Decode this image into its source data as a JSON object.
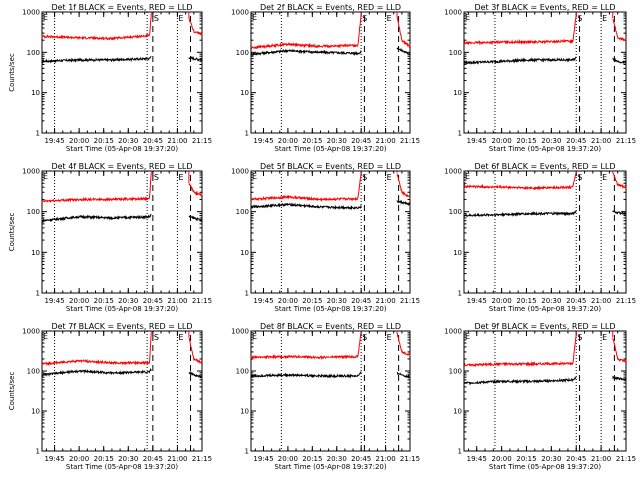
{
  "colors": {
    "events": "#000000",
    "lld": "#ff0000",
    "axis": "#000000",
    "background": "#ffffff"
  },
  "chart_data": [
    {
      "type": "line",
      "title": "Det 1f BLACK = Events, RED = LLD",
      "xlabel": "Start Time (05-Apr-08 19:37:20)",
      "ylabel": "Counts/sec",
      "yscale": "log",
      "ylim": [
        1,
        1000
      ],
      "xlim": [
        "19:37:20",
        "21:15:00"
      ],
      "xticks": [
        "19:45",
        "20:00",
        "20:15",
        "20:30",
        "20:45",
        "21:00",
        "21:15"
      ],
      "yticks": [
        "1",
        "10",
        "100",
        "1000"
      ],
      "dotted_lines": [
        "19:45",
        "20:41:30",
        "21:00"
      ],
      "dashed_lines": [
        "20:45",
        "21:08"
      ],
      "markers": {
        "S": "20:45",
        "E": "21:00"
      },
      "series": [
        {
          "name": "Events",
          "color": "black",
          "values": [
            [
              "19:37:20",
              60
            ],
            [
              "20:00",
              65
            ],
            [
              "20:20",
              65
            ],
            [
              "20:43",
              70
            ],
            [
              "20:44",
              80
            ]
          ],
          "after_gap": [
            [
              "21:07",
              75
            ],
            [
              "21:10",
              70
            ],
            [
              "21:15",
              65
            ]
          ]
        },
        {
          "name": "LLD",
          "color": "red",
          "values": [
            [
              "19:37:20",
              250
            ],
            [
              "20:00",
              230
            ],
            [
              "20:20",
              220
            ],
            [
              "20:43",
              260
            ],
            [
              "20:44",
              800
            ]
          ],
          "after_gap": [
            [
              "21:07",
              700
            ],
            [
              "21:10",
              330
            ],
            [
              "21:15",
              280
            ]
          ]
        }
      ]
    },
    {
      "type": "line",
      "title": "Det 2f BLACK = Events, RED = LLD",
      "xlabel": "Start Time (05-Apr-08 19:37:20)",
      "ylabel": "",
      "yscale": "log",
      "ylim": [
        1,
        1000
      ],
      "xlim": [
        "19:37:20",
        "21:15:00"
      ],
      "xticks": [
        "19:45",
        "20:00",
        "20:15",
        "20:30",
        "20:45",
        "21:00",
        "21:15"
      ],
      "yticks": [
        "1",
        "10",
        "100",
        "1000"
      ],
      "dotted_lines": [
        "19:56",
        "20:45",
        "21:00"
      ],
      "dashed_lines": [
        "20:47",
        "21:08"
      ],
      "markers": {
        "S": "20:45",
        "E": "21:00"
      },
      "series": [
        {
          "name": "Events",
          "color": "black",
          "values": [
            [
              "19:37:20",
              90
            ],
            [
              "20:00",
              110
            ],
            [
              "20:20",
              100
            ],
            [
              "20:43",
              95
            ],
            [
              "20:45",
              100
            ]
          ],
          "after_gap": [
            [
              "21:07",
              130
            ],
            [
              "21:10",
              110
            ],
            [
              "21:15",
              90
            ]
          ]
        },
        {
          "name": "LLD",
          "color": "red",
          "values": [
            [
              "19:37:20",
              130
            ],
            [
              "20:00",
              160
            ],
            [
              "20:20",
              140
            ],
            [
              "20:43",
              150
            ],
            [
              "20:45",
              900
            ]
          ],
          "after_gap": [
            [
              "21:07",
              800
            ],
            [
              "21:10",
              200
            ],
            [
              "21:15",
              140
            ]
          ]
        }
      ]
    },
    {
      "type": "line",
      "title": "Det 3f BLACK = Events, RED = LLD",
      "xlabel": "Start Time (05-Apr-08 19:37:20)",
      "ylabel": "",
      "yscale": "log",
      "ylim": [
        1,
        1000
      ],
      "xlim": [
        "19:37:20",
        "21:15:00"
      ],
      "xticks": [
        "19:45",
        "20:00",
        "20:15",
        "20:30",
        "20:45",
        "21:00",
        "21:15"
      ],
      "yticks": [
        "1",
        "10",
        "100",
        "1000"
      ],
      "dotted_lines": [
        "19:56",
        "20:45",
        "21:00"
      ],
      "dashed_lines": [
        "20:47",
        "21:08"
      ],
      "markers": {
        "S": "20:45",
        "E": "21:00"
      },
      "series": [
        {
          "name": "Events",
          "color": "black",
          "values": [
            [
              "19:37:20",
              55
            ],
            [
              "20:00",
              60
            ],
            [
              "20:20",
              65
            ],
            [
              "20:43",
              65
            ],
            [
              "20:45",
              75
            ]
          ],
          "after_gap": [
            [
              "21:07",
              70
            ],
            [
              "21:10",
              60
            ],
            [
              "21:15",
              55
            ]
          ]
        },
        {
          "name": "LLD",
          "color": "red",
          "values": [
            [
              "19:37:20",
              170
            ],
            [
              "20:00",
              180
            ],
            [
              "20:20",
              180
            ],
            [
              "20:43",
              190
            ],
            [
              "20:45",
              900
            ]
          ],
          "after_gap": [
            [
              "21:07",
              700
            ],
            [
              "21:10",
              230
            ],
            [
              "21:15",
              200
            ]
          ]
        }
      ]
    },
    {
      "type": "line",
      "title": "Det 4f BLACK = Events, RED = LLD",
      "xlabel": "Start Time (05-Apr-08 19:37:20)",
      "ylabel": "Counts/sec",
      "yscale": "log",
      "ylim": [
        1,
        1000
      ],
      "xlim": [
        "19:37:20",
        "21:15:00"
      ],
      "xticks": [
        "19:45",
        "20:00",
        "20:15",
        "20:30",
        "20:45",
        "21:00",
        "21:15"
      ],
      "yticks": [
        "1",
        "10",
        "100",
        "1000"
      ],
      "dotted_lines": [
        "19:45",
        "20:41:30",
        "21:00"
      ],
      "dashed_lines": [
        "20:45",
        "21:08"
      ],
      "markers": {
        "S": "20:45",
        "E": "21:00"
      },
      "series": [
        {
          "name": "Events",
          "color": "black",
          "values": [
            [
              "19:37:20",
              60
            ],
            [
              "20:00",
              75
            ],
            [
              "20:20",
              70
            ],
            [
              "20:43",
              75
            ],
            [
              "20:44",
              85
            ]
          ],
          "after_gap": [
            [
              "21:07",
              75
            ],
            [
              "21:10",
              70
            ],
            [
              "21:15",
              60
            ]
          ]
        },
        {
          "name": "LLD",
          "color": "red",
          "values": [
            [
              "19:37:20",
              180
            ],
            [
              "20:00",
              200
            ],
            [
              "20:20",
              200
            ],
            [
              "20:43",
              210
            ],
            [
              "20:44",
              850
            ]
          ],
          "after_gap": [
            [
              "21:07",
              500
            ],
            [
              "21:10",
              300
            ],
            [
              "21:15",
              250
            ]
          ]
        }
      ]
    },
    {
      "type": "line",
      "title": "Det 5f BLACK = Events, RED = LLD",
      "xlabel": "Start Time (05-Apr-08 19:37:20)",
      "ylabel": "",
      "yscale": "log",
      "ylim": [
        1,
        1000
      ],
      "xlim": [
        "19:37:20",
        "21:15:00"
      ],
      "xticks": [
        "19:45",
        "20:00",
        "20:15",
        "20:30",
        "20:45",
        "21:00",
        "21:15"
      ],
      "yticks": [
        "1",
        "10",
        "100",
        "1000"
      ],
      "dotted_lines": [
        "19:56",
        "20:45",
        "21:00"
      ],
      "dashed_lines": [
        "20:47",
        "21:08"
      ],
      "markers": {
        "S": "20:45",
        "E": "21:00"
      },
      "series": [
        {
          "name": "Events",
          "color": "black",
          "values": [
            [
              "19:37:20",
              130
            ],
            [
              "20:00",
              150
            ],
            [
              "20:20",
              130
            ],
            [
              "20:43",
              125
            ],
            [
              "20:45",
              130
            ]
          ],
          "after_gap": [
            [
              "21:07",
              180
            ],
            [
              "21:10",
              170
            ],
            [
              "21:15",
              150
            ]
          ]
        },
        {
          "name": "LLD",
          "color": "red",
          "values": [
            [
              "19:37:20",
              200
            ],
            [
              "20:00",
              230
            ],
            [
              "20:20",
              200
            ],
            [
              "20:43",
              210
            ],
            [
              "20:45",
              950
            ]
          ],
          "after_gap": [
            [
              "21:07",
              900
            ],
            [
              "21:10",
              300
            ],
            [
              "21:15",
              230
            ]
          ]
        }
      ]
    },
    {
      "type": "line",
      "title": "Det 6f BLACK = Events, RED = LLD",
      "xlabel": "Start Time (05-Apr-08 19:37:20)",
      "ylabel": "",
      "yscale": "log",
      "ylim": [
        1,
        1000
      ],
      "xlim": [
        "19:37:20",
        "21:15:00"
      ],
      "xticks": [
        "19:45",
        "20:00",
        "20:15",
        "20:30",
        "20:45",
        "21:00",
        "21:15"
      ],
      "yticks": [
        "1",
        "10",
        "100",
        "1000"
      ],
      "dotted_lines": [
        "19:56",
        "20:45",
        "21:00"
      ],
      "dashed_lines": [
        "20:47",
        "21:08"
      ],
      "markers": {
        "S": "20:45",
        "E": "21:00"
      },
      "series": [
        {
          "name": "Events",
          "color": "black",
          "values": [
            [
              "19:37:20",
              80
            ],
            [
              "20:00",
              85
            ],
            [
              "20:20",
              90
            ],
            [
              "20:43",
              90
            ],
            [
              "20:45",
              100
            ]
          ],
          "after_gap": [
            [
              "21:07",
              100
            ],
            [
              "21:10",
              95
            ],
            [
              "21:15",
              90
            ]
          ]
        },
        {
          "name": "LLD",
          "color": "red",
          "values": [
            [
              "19:37:20",
              420
            ],
            [
              "20:00",
              400
            ],
            [
              "20:20",
              380
            ],
            [
              "20:43",
              400
            ],
            [
              "20:45",
              1000
            ]
          ],
          "after_gap": [
            [
              "21:07",
              900
            ],
            [
              "21:10",
              450
            ],
            [
              "21:15",
              400
            ]
          ]
        }
      ]
    },
    {
      "type": "line",
      "title": "Det 7f BLACK = Events, RED = LLD",
      "xlabel": "Start Time (05-Apr-08 19:37:20)",
      "ylabel": "Counts/sec",
      "yscale": "log",
      "ylim": [
        1,
        1000
      ],
      "xlim": [
        "19:37:20",
        "21:15:00"
      ],
      "xticks": [
        "19:45",
        "20:00",
        "20:15",
        "20:30",
        "20:45",
        "21:00",
        "21:15"
      ],
      "yticks": [
        "1",
        "10",
        "100",
        "1000"
      ],
      "dotted_lines": [
        "19:45",
        "20:41:30",
        "21:00"
      ],
      "dashed_lines": [
        "20:45",
        "21:08"
      ],
      "markers": {
        "S": "20:45",
        "E": "21:00"
      },
      "series": [
        {
          "name": "Events",
          "color": "black",
          "values": [
            [
              "19:37:20",
              80
            ],
            [
              "20:00",
              100
            ],
            [
              "20:20",
              90
            ],
            [
              "20:43",
              95
            ],
            [
              "20:44",
              110
            ]
          ],
          "after_gap": [
            [
              "21:07",
              90
            ],
            [
              "21:10",
              80
            ],
            [
              "21:15",
              70
            ]
          ]
        },
        {
          "name": "LLD",
          "color": "red",
          "values": [
            [
              "19:37:20",
              150
            ],
            [
              "20:00",
              180
            ],
            [
              "20:20",
              160
            ],
            [
              "20:43",
              160
            ],
            [
              "20:44",
              900
            ]
          ],
          "after_gap": [
            [
              "21:07",
              700
            ],
            [
              "21:10",
              200
            ],
            [
              "21:15",
              160
            ]
          ]
        }
      ]
    },
    {
      "type": "line",
      "title": "Det 8f BLACK = Events, RED = LLD",
      "xlabel": "Start Time (05-Apr-08 19:37:20)",
      "ylabel": "",
      "yscale": "log",
      "ylim": [
        1,
        1000
      ],
      "xlim": [
        "19:37:20",
        "21:15:00"
      ],
      "xticks": [
        "19:45",
        "20:00",
        "20:15",
        "20:30",
        "20:45",
        "21:00",
        "21:15"
      ],
      "yticks": [
        "1",
        "10",
        "100",
        "1000"
      ],
      "dotted_lines": [
        "19:56",
        "20:45",
        "21:00"
      ],
      "dashed_lines": [
        "20:47",
        "21:08"
      ],
      "markers": {
        "S": "20:45",
        "E": "21:00"
      },
      "series": [
        {
          "name": "Events",
          "color": "black",
          "values": [
            [
              "19:37:20",
              75
            ],
            [
              "20:00",
              80
            ],
            [
              "20:20",
              75
            ],
            [
              "20:43",
              75
            ],
            [
              "20:45",
              90
            ]
          ],
          "after_gap": [
            [
              "21:07",
              90
            ],
            [
              "21:10",
              80
            ],
            [
              "21:15",
              70
            ]
          ]
        },
        {
          "name": "LLD",
          "color": "red",
          "values": [
            [
              "19:37:20",
              220
            ],
            [
              "20:00",
              230
            ],
            [
              "20:20",
              220
            ],
            [
              "20:43",
              230
            ],
            [
              "20:45",
              1000
            ]
          ],
          "after_gap": [
            [
              "21:07",
              900
            ],
            [
              "21:10",
              300
            ],
            [
              "21:15",
              250
            ]
          ]
        }
      ]
    },
    {
      "type": "line",
      "title": "Det 9f BLACK = Events, RED = LLD",
      "xlabel": "Start Time (05-Apr-08 19:37:20)",
      "ylabel": "",
      "yscale": "log",
      "ylim": [
        1,
        1000
      ],
      "xlim": [
        "19:37:20",
        "21:15:00"
      ],
      "xticks": [
        "19:45",
        "20:00",
        "20:15",
        "20:30",
        "20:45",
        "21:00",
        "21:15"
      ],
      "yticks": [
        "1",
        "10",
        "100",
        "1000"
      ],
      "dotted_lines": [
        "19:56",
        "20:45",
        "21:00"
      ],
      "dashed_lines": [
        "20:47",
        "21:08"
      ],
      "markers": {
        "S": "20:45",
        "E": "21:00"
      },
      "series": [
        {
          "name": "Events",
          "color": "black",
          "values": [
            [
              "19:37:20",
              50
            ],
            [
              "20:00",
              55
            ],
            [
              "20:20",
              55
            ],
            [
              "20:43",
              60
            ],
            [
              "20:45",
              70
            ]
          ],
          "after_gap": [
            [
              "21:07",
              70
            ],
            [
              "21:10",
              65
            ],
            [
              "21:15",
              60
            ]
          ]
        },
        {
          "name": "LLD",
          "color": "red",
          "values": [
            [
              "19:37:20",
              140
            ],
            [
              "20:00",
              150
            ],
            [
              "20:20",
              150
            ],
            [
              "20:43",
              155
            ],
            [
              "20:45",
              900
            ]
          ],
          "after_gap": [
            [
              "21:07",
              700
            ],
            [
              "21:10",
              200
            ],
            [
              "21:15",
              170
            ]
          ]
        }
      ]
    }
  ]
}
